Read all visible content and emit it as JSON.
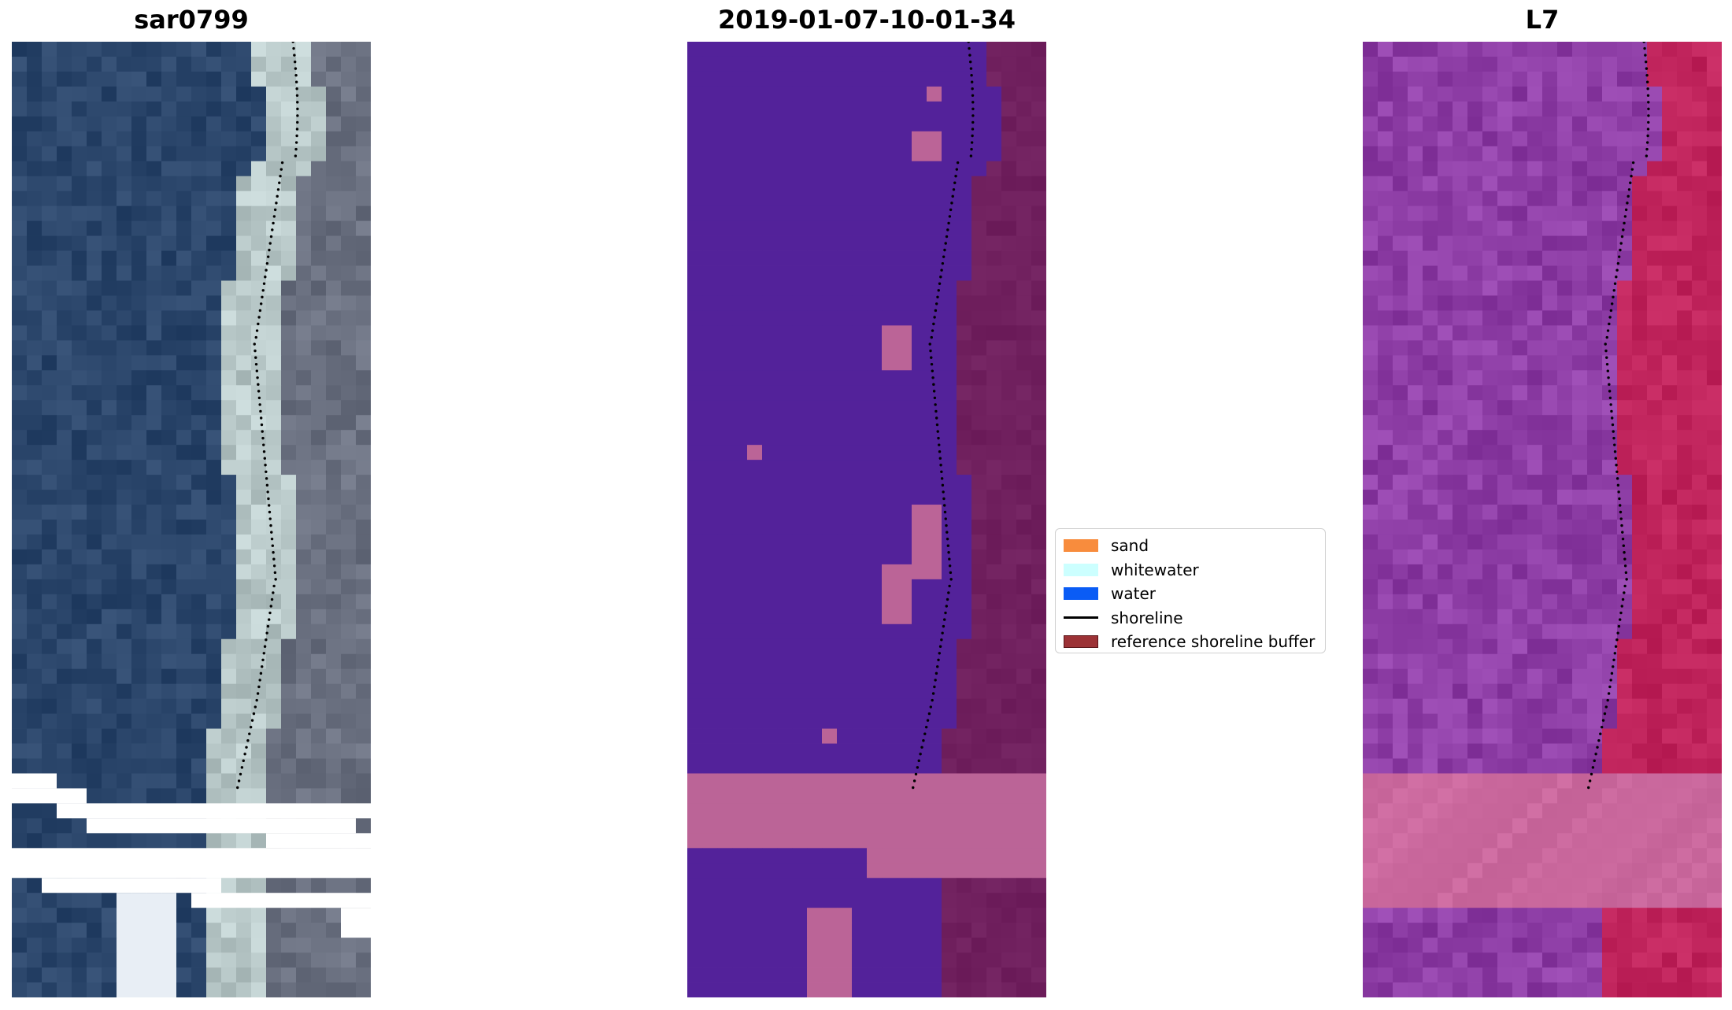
{
  "panels": [
    {
      "title": "sar0799",
      "kind": "rgb"
    },
    {
      "title": "2019-01-07-10-01-34",
      "kind": "classified"
    },
    {
      "title": "L7",
      "kind": "index"
    }
  ],
  "legend": [
    {
      "label": "sand",
      "color": "#f88c3d",
      "type": "patch"
    },
    {
      "label": "whitewater",
      "color": "#ccffff",
      "type": "patch"
    },
    {
      "label": "water",
      "color": "#0a5cf5",
      "type": "patch"
    },
    {
      "label": "shoreline",
      "color": "#000000",
      "type": "line"
    },
    {
      "label": "reference shoreline buffer",
      "color": "#9c3236",
      "type": "patch",
      "edge": "#5a1417"
    }
  ],
  "colors": {
    "rgb_water": "#2b466b",
    "rgb_land": "#6a7080",
    "rgb_beach": "#b8c8c8",
    "class_water": "#53229a",
    "class_land": "#70205e",
    "class_pink": "#bb6497",
    "index_water": "#8e3ea6",
    "index_land": "#c0245c",
    "index_pink": "#cc6a9f"
  }
}
